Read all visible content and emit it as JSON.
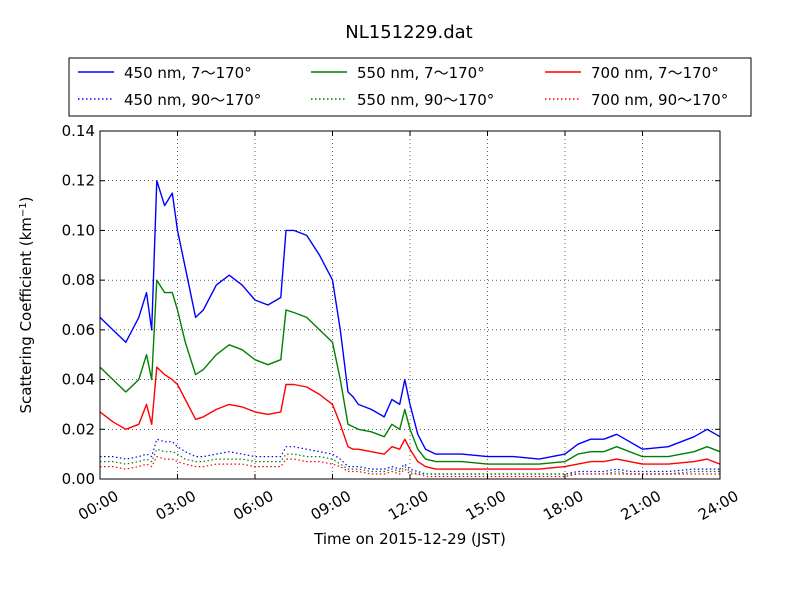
{
  "chart_data": {
    "type": "line",
    "title": "NL151229.dat",
    "xlabel": "Time on 2015-12-29 (JST)",
    "ylabel": "Scattering Coefficient (km",
    "ylabel_exp": "−1",
    "ylabel_close": ")",
    "xlim": [
      0,
      24
    ],
    "ylim": [
      0,
      0.14
    ],
    "x_ticks": [
      0,
      3,
      6,
      9,
      12,
      15,
      18,
      21,
      24
    ],
    "x_tick_labels": [
      "00:00",
      "03:00",
      "06:00",
      "09:00",
      "12:00",
      "15:00",
      "18:00",
      "21:00",
      "24:00"
    ],
    "y_ticks": [
      0,
      0.02,
      0.04,
      0.06,
      0.08,
      0.1,
      0.12,
      0.14
    ],
    "y_tick_labels": [
      "0.00",
      "0.02",
      "0.04",
      "0.06",
      "0.08",
      "0.10",
      "0.12",
      "0.14"
    ],
    "grid": true,
    "legend_position": "top, above plot",
    "x": [
      0,
      0.5,
      1,
      1.5,
      1.8,
      2,
      2.2,
      2.5,
      2.8,
      3,
      3.3,
      3.7,
      4,
      4.5,
      5,
      5.5,
      6,
      6.5,
      7,
      7.2,
      7.5,
      8,
      8.5,
      9,
      9.3,
      9.6,
      9.8,
      10,
      10.5,
      11,
      11.3,
      11.6,
      11.8,
      12,
      12.3,
      12.6,
      13,
      14,
      15,
      16,
      17,
      18,
      18.5,
      19,
      19.5,
      20,
      20.5,
      21,
      22,
      23,
      23.5,
      24
    ],
    "series": [
      {
        "name": "450 nm, 7～170°",
        "color": "#0000ff",
        "style": "solid",
        "values": [
          0.065,
          0.06,
          0.055,
          0.065,
          0.075,
          0.06,
          0.12,
          0.11,
          0.115,
          0.1,
          0.085,
          0.065,
          0.068,
          0.078,
          0.082,
          0.078,
          0.072,
          0.07,
          0.073,
          0.1,
          0.1,
          0.098,
          0.09,
          0.08,
          0.06,
          0.035,
          0.033,
          0.03,
          0.028,
          0.025,
          0.032,
          0.03,
          0.04,
          0.03,
          0.018,
          0.012,
          0.01,
          0.01,
          0.009,
          0.009,
          0.008,
          0.01,
          0.014,
          0.016,
          0.016,
          0.018,
          0.015,
          0.012,
          0.013,
          0.017,
          0.02,
          0.017
        ]
      },
      {
        "name": "550 nm, 7～170°",
        "color": "#008000",
        "style": "solid",
        "values": [
          0.045,
          0.04,
          0.035,
          0.04,
          0.05,
          0.04,
          0.08,
          0.075,
          0.075,
          0.068,
          0.055,
          0.042,
          0.044,
          0.05,
          0.054,
          0.052,
          0.048,
          0.046,
          0.048,
          0.068,
          0.067,
          0.065,
          0.06,
          0.055,
          0.04,
          0.022,
          0.021,
          0.02,
          0.019,
          0.017,
          0.022,
          0.02,
          0.028,
          0.02,
          0.012,
          0.008,
          0.007,
          0.007,
          0.006,
          0.006,
          0.006,
          0.007,
          0.01,
          0.011,
          0.011,
          0.013,
          0.011,
          0.009,
          0.009,
          0.011,
          0.013,
          0.011
        ]
      },
      {
        "name": "700 nm, 7～170°",
        "color": "#ff0000",
        "style": "solid",
        "values": [
          0.027,
          0.023,
          0.02,
          0.022,
          0.03,
          0.022,
          0.045,
          0.042,
          0.04,
          0.038,
          0.032,
          0.024,
          0.025,
          0.028,
          0.03,
          0.029,
          0.027,
          0.026,
          0.027,
          0.038,
          0.038,
          0.037,
          0.034,
          0.03,
          0.022,
          0.013,
          0.012,
          0.012,
          0.011,
          0.01,
          0.013,
          0.012,
          0.016,
          0.012,
          0.007,
          0.005,
          0.004,
          0.004,
          0.004,
          0.004,
          0.004,
          0.005,
          0.006,
          0.007,
          0.007,
          0.008,
          0.007,
          0.006,
          0.006,
          0.007,
          0.008,
          0.006
        ]
      },
      {
        "name": "450 nm, 90～170°",
        "color": "#0000ff",
        "style": "dotted",
        "values": [
          0.009,
          0.009,
          0.008,
          0.009,
          0.01,
          0.009,
          0.016,
          0.015,
          0.015,
          0.013,
          0.011,
          0.009,
          0.009,
          0.01,
          0.011,
          0.01,
          0.009,
          0.009,
          0.009,
          0.013,
          0.013,
          0.012,
          0.011,
          0.01,
          0.008,
          0.005,
          0.005,
          0.005,
          0.004,
          0.004,
          0.005,
          0.004,
          0.006,
          0.004,
          0.003,
          0.002,
          0.002,
          0.002,
          0.002,
          0.002,
          0.002,
          0.002,
          0.003,
          0.003,
          0.003,
          0.004,
          0.003,
          0.003,
          0.003,
          0.004,
          0.004,
          0.004
        ]
      },
      {
        "name": "550 nm, 90～170°",
        "color": "#008000",
        "style": "dotted",
        "values": [
          0.007,
          0.007,
          0.006,
          0.007,
          0.008,
          0.007,
          0.012,
          0.011,
          0.011,
          0.01,
          0.008,
          0.007,
          0.007,
          0.008,
          0.008,
          0.008,
          0.007,
          0.007,
          0.007,
          0.01,
          0.01,
          0.009,
          0.009,
          0.008,
          0.006,
          0.004,
          0.004,
          0.004,
          0.003,
          0.003,
          0.004,
          0.003,
          0.005,
          0.003,
          0.002,
          0.002,
          0.002,
          0.002,
          0.002,
          0.002,
          0.002,
          0.002,
          0.002,
          0.002,
          0.002,
          0.003,
          0.002,
          0.002,
          0.002,
          0.003,
          0.003,
          0.003
        ]
      },
      {
        "name": "700 nm, 90～170°",
        "color": "#ff0000",
        "style": "dotted",
        "values": [
          0.005,
          0.005,
          0.004,
          0.005,
          0.006,
          0.005,
          0.009,
          0.008,
          0.008,
          0.007,
          0.006,
          0.005,
          0.005,
          0.006,
          0.006,
          0.006,
          0.005,
          0.005,
          0.005,
          0.008,
          0.008,
          0.007,
          0.007,
          0.006,
          0.005,
          0.003,
          0.003,
          0.003,
          0.002,
          0.002,
          0.003,
          0.002,
          0.004,
          0.002,
          0.002,
          0.001,
          0.001,
          0.001,
          0.001,
          0.001,
          0.001,
          0.001,
          0.002,
          0.002,
          0.002,
          0.002,
          0.002,
          0.002,
          0.002,
          0.002,
          0.002,
          0.002
        ]
      }
    ]
  }
}
